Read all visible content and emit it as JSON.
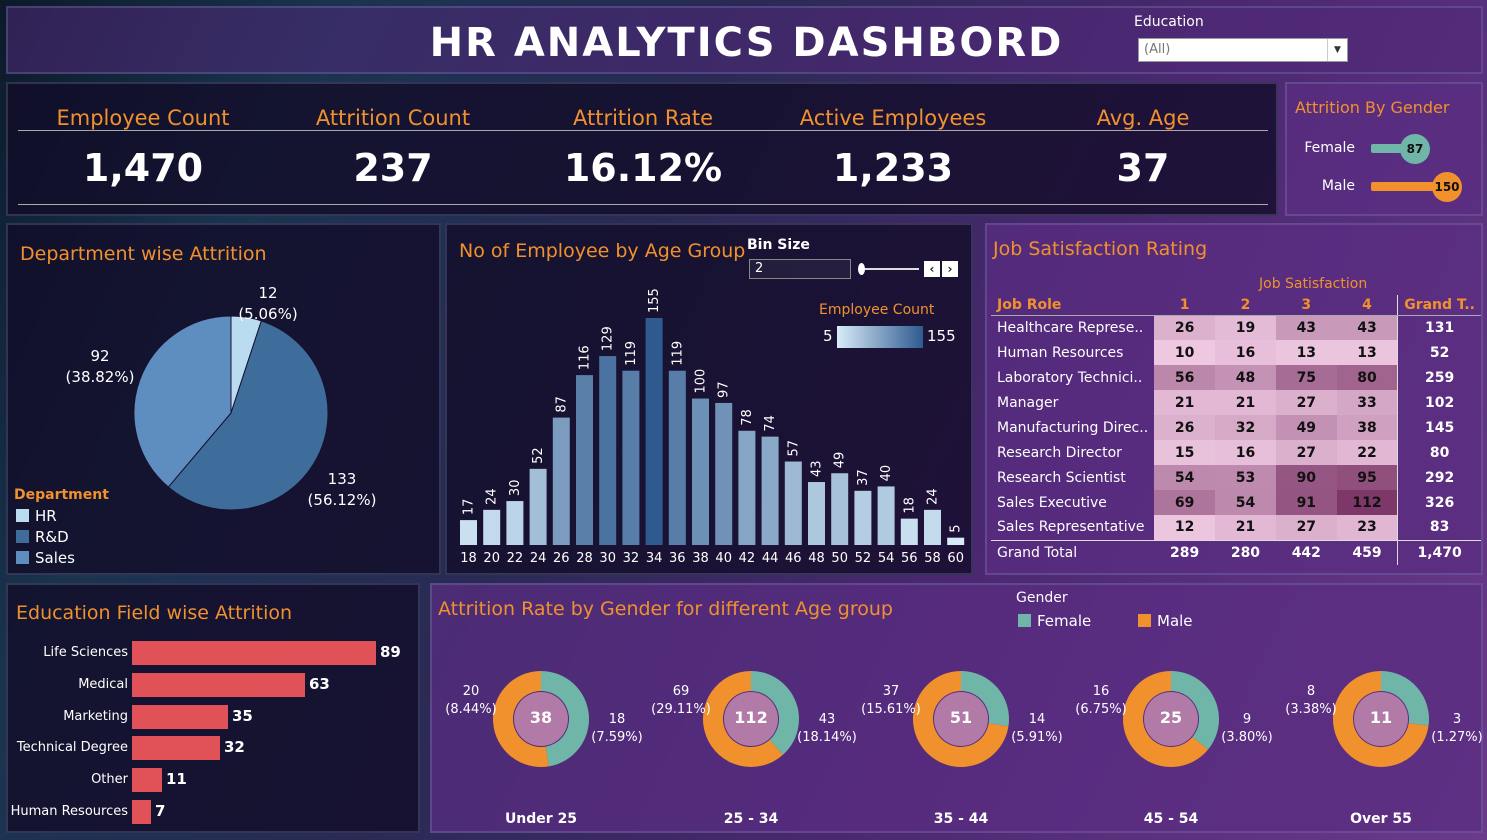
{
  "header": {
    "title": "HR ANALYTICS DASHBORD",
    "education_label": "Education",
    "education_value": "(All)"
  },
  "kpis": [
    {
      "label": "Employee Count",
      "value": "1,470"
    },
    {
      "label": "Attrition Count",
      "value": "237"
    },
    {
      "label": "Attrition Rate",
      "value": "16.12%"
    },
    {
      "label": "Active Employees",
      "value": "1,233"
    },
    {
      "label": "Avg. Age",
      "value": "37"
    }
  ],
  "gender_attrition": {
    "title": "Attrition By Gender",
    "items": [
      {
        "label": "Female",
        "value": "87",
        "num": 87,
        "color": "#6fb5a8"
      },
      {
        "label": "Male",
        "value": "150",
        "num": 150,
        "color": "#f0912e"
      }
    ]
  },
  "department": {
    "title": "Department wise Attrition",
    "legend_title": "Department",
    "legend": [
      {
        "label": "HR",
        "color": "#b9dcf0"
      },
      {
        "label": "R&D",
        "color": "#3e6d9c"
      },
      {
        "label": "Sales",
        "color": "#5e8ec0"
      }
    ],
    "slices": [
      {
        "count": "12",
        "pct": "(5.06%)"
      },
      {
        "count": "133",
        "pct": "(56.12%)"
      },
      {
        "count": "92",
        "pct": "(38.82%)"
      }
    ]
  },
  "age_group": {
    "title": "No of Employee by Age Group",
    "bin_label": "Bin Size",
    "bin_value": "2",
    "legend_label": "Employee Count",
    "legend_min": "5",
    "legend_max": "155"
  },
  "job_satisfaction": {
    "title": "Job Satisfaction Rating",
    "column_group": "Job Satisfaction",
    "headers": [
      "Job Role",
      "1",
      "2",
      "3",
      "4",
      "Grand T.."
    ],
    "rows": [
      {
        "role": "Healthcare Represe..",
        "v": [
          "26",
          "19",
          "43",
          "43"
        ],
        "total": "131"
      },
      {
        "role": "Human Resources",
        "v": [
          "10",
          "16",
          "13",
          "13"
        ],
        "total": "52"
      },
      {
        "role": "Laboratory Technici..",
        "v": [
          "56",
          "48",
          "75",
          "80"
        ],
        "total": "259"
      },
      {
        "role": "Manager",
        "v": [
          "21",
          "21",
          "27",
          "33"
        ],
        "total": "102"
      },
      {
        "role": "Manufacturing Direc..",
        "v": [
          "26",
          "32",
          "49",
          "38"
        ],
        "total": "145"
      },
      {
        "role": "Research Director",
        "v": [
          "15",
          "16",
          "27",
          "22"
        ],
        "total": "80"
      },
      {
        "role": "Research Scientist",
        "v": [
          "54",
          "53",
          "90",
          "95"
        ],
        "total": "292"
      },
      {
        "role": "Sales Executive",
        "v": [
          "69",
          "54",
          "91",
          "112"
        ],
        "total": "326"
      },
      {
        "role": "Sales Representative",
        "v": [
          "12",
          "21",
          "27",
          "23"
        ],
        "total": "83"
      }
    ],
    "grand": {
      "role": "Grand Total",
      "v": [
        "289",
        "280",
        "442",
        "459"
      ],
      "total": "1,470"
    }
  },
  "education_field": {
    "title": "Education Field wise Attrition",
    "color": "#e05257"
  },
  "gender_age": {
    "title": "Attrition Rate by Gender for different Age group",
    "legend_title": "Gender",
    "legend": [
      {
        "label": "Female",
        "color": "#6fb5a8"
      },
      {
        "label": "Male",
        "color": "#f0912e"
      }
    ],
    "groups": [
      {
        "name": "Under 25",
        "total": "38",
        "male": "20",
        "male_pct": "(8.44%)",
        "female": "18",
        "female_pct": "(7.59%)"
      },
      {
        "name": "25 - 34",
        "total": "112",
        "male": "69",
        "male_pct": "(29.11%)",
        "female": "43",
        "female_pct": "(18.14%)"
      },
      {
        "name": "35 - 44",
        "total": "51",
        "male": "37",
        "male_pct": "(15.61%)",
        "female": "14",
        "female_pct": "(5.91%)"
      },
      {
        "name": "45 - 54",
        "total": "25",
        "male": "16",
        "male_pct": "(6.75%)",
        "female": "9",
        "female_pct": "(3.80%)"
      },
      {
        "name": "Over 55",
        "total": "11",
        "male": "8",
        "male_pct": "(3.38%)",
        "female": "3",
        "female_pct": "(1.27%)"
      }
    ]
  },
  "chart_data": [
    {
      "type": "pie",
      "title": "Department wise Attrition",
      "categories": [
        "HR",
        "R&D",
        "Sales"
      ],
      "values": [
        12,
        133,
        92
      ]
    },
    {
      "type": "bar",
      "title": "No of Employee by Age Group",
      "categories": [
        "18",
        "20",
        "22",
        "24",
        "26",
        "28",
        "30",
        "32",
        "34",
        "36",
        "38",
        "40",
        "42",
        "44",
        "46",
        "48",
        "50",
        "52",
        "54",
        "56",
        "58",
        "60"
      ],
      "values": [
        17,
        24,
        30,
        52,
        87,
        116,
        129,
        119,
        155,
        119,
        100,
        97,
        78,
        74,
        57,
        43,
        49,
        37,
        40,
        18,
        24,
        5
      ],
      "ylim": [
        0,
        160
      ]
    },
    {
      "type": "bar",
      "orientation": "horizontal",
      "title": "Education Field wise Attrition",
      "categories": [
        "Life Sciences",
        "Medical",
        "Marketing",
        "Technical Degree",
        "Other",
        "Human Resources"
      ],
      "values": [
        89,
        63,
        35,
        32,
        11,
        7
      ]
    },
    {
      "type": "pie",
      "title": "Attrition By Gender",
      "categories": [
        "Female",
        "Male"
      ],
      "values": [
        87,
        150
      ]
    }
  ]
}
